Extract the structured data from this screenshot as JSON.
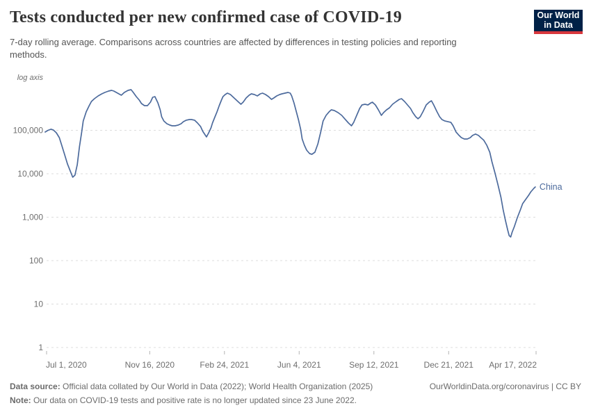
{
  "header": {
    "title": "Tests conducted per new confirmed case of COVID-19",
    "subtitle": "7-day rolling average. Comparisons across countries are affected by differences in testing policies and reporting methods.",
    "logo": {
      "line1": "Our World",
      "line2": "in Data"
    }
  },
  "colors": {
    "line": "#4C6A9C",
    "gridline": "#dcdcdc",
    "tick": "#b3b3b3",
    "axis_text": "#6e6e6e",
    "logo_bg": "#002147",
    "logo_red": "#D8373D"
  },
  "chart_data": {
    "type": "line",
    "title": "Tests conducted per new confirmed case of COVID-19",
    "y_axis": {
      "scale": "log",
      "label": "log axis",
      "grid": "dashed",
      "range": [
        1,
        1000000
      ],
      "ticks": [
        100000,
        10000,
        1000,
        100,
        10,
        1
      ],
      "tick_labels": [
        "100,000",
        "10,000",
        "1,000",
        "100",
        "10",
        "1"
      ]
    },
    "x_axis": {
      "unit": "days since 2020-07-01",
      "range": [
        0,
        655
      ],
      "ticks": [
        [
          0,
          "Jul 1, 2020"
        ],
        [
          138,
          "Nov 16, 2020"
        ],
        [
          238,
          "Feb 24, 2021"
        ],
        [
          338,
          "Jun 4, 2021"
        ],
        [
          438,
          "Sep 12, 2021"
        ],
        [
          538,
          "Dec 21, 2021"
        ],
        [
          655,
          "Apr 17, 2022"
        ]
      ]
    },
    "series": [
      {
        "name": "China",
        "end_label": "China",
        "color": "#4C6A9C",
        "points": [
          [
            -2,
            91200
          ],
          [
            2,
            100000
          ],
          [
            6,
            106000
          ],
          [
            9,
            102000
          ],
          [
            13,
            87900
          ],
          [
            17,
            67900
          ],
          [
            20,
            46900
          ],
          [
            24,
            28100
          ],
          [
            28,
            16700
          ],
          [
            32,
            11200
          ],
          [
            35,
            8320
          ],
          [
            38,
            9290
          ],
          [
            41,
            16100
          ],
          [
            44,
            42000
          ],
          [
            47,
            91200
          ],
          [
            49,
            164000
          ],
          [
            53,
            266000
          ],
          [
            57,
            370000
          ],
          [
            60,
            461000
          ],
          [
            64,
            535000
          ],
          [
            69,
            619000
          ],
          [
            74,
            692000
          ],
          [
            78,
            745000
          ],
          [
            83,
            802000
          ],
          [
            87,
            832000
          ],
          [
            90,
            802000
          ],
          [
            95,
            718000
          ],
          [
            100,
            643000
          ],
          [
            104,
            745000
          ],
          [
            109,
            832000
          ],
          [
            113,
            863000
          ],
          [
            116,
            745000
          ],
          [
            120,
            597000
          ],
          [
            124,
            497000
          ],
          [
            127,
            413000
          ],
          [
            131,
            370000
          ],
          [
            135,
            370000
          ],
          [
            139,
            445000
          ],
          [
            142,
            575000
          ],
          [
            145,
            597000
          ],
          [
            149,
            429000
          ],
          [
            152,
            297000
          ],
          [
            154,
            205000
          ],
          [
            157,
            164000
          ],
          [
            161,
            142000
          ],
          [
            165,
            132000
          ],
          [
            168,
            127000
          ],
          [
            172,
            127000
          ],
          [
            176,
            132000
          ],
          [
            180,
            142000
          ],
          [
            183,
            158000
          ],
          [
            187,
            171000
          ],
          [
            191,
            177000
          ],
          [
            194,
            177000
          ],
          [
            198,
            171000
          ],
          [
            202,
            147000
          ],
          [
            206,
            123000
          ],
          [
            209,
            95000
          ],
          [
            212,
            79000
          ],
          [
            214,
            70500
          ],
          [
            217,
            88000
          ],
          [
            220,
            114000
          ],
          [
            222,
            147000
          ],
          [
            225,
            198000
          ],
          [
            228,
            266000
          ],
          [
            231,
            370000
          ],
          [
            234,
            497000
          ],
          [
            236,
            597000
          ],
          [
            239,
            667000
          ],
          [
            242,
            718000
          ],
          [
            246,
            667000
          ],
          [
            249,
            597000
          ],
          [
            253,
            515000
          ],
          [
            257,
            445000
          ],
          [
            260,
            398000
          ],
          [
            263,
            445000
          ],
          [
            267,
            555000
          ],
          [
            271,
            643000
          ],
          [
            274,
            692000
          ],
          [
            278,
            667000
          ],
          [
            282,
            619000
          ],
          [
            286,
            692000
          ],
          [
            289,
            718000
          ],
          [
            293,
            667000
          ],
          [
            297,
            597000
          ],
          [
            301,
            515000
          ],
          [
            304,
            555000
          ],
          [
            308,
            619000
          ],
          [
            312,
            667000
          ],
          [
            315,
            692000
          ],
          [
            319,
            718000
          ],
          [
            323,
            745000
          ],
          [
            326,
            718000
          ],
          [
            328,
            619000
          ],
          [
            331,
            429000
          ],
          [
            334,
            275000
          ],
          [
            337,
            177000
          ],
          [
            340,
            106000
          ],
          [
            342,
            63000
          ],
          [
            345,
            45300
          ],
          [
            348,
            35000
          ],
          [
            352,
            29100
          ],
          [
            355,
            28100
          ],
          [
            359,
            31300
          ],
          [
            363,
            48800
          ],
          [
            367,
            95000
          ],
          [
            370,
            164000
          ],
          [
            374,
            221000
          ],
          [
            378,
            266000
          ],
          [
            381,
            297000
          ],
          [
            385,
            286000
          ],
          [
            390,
            256000
          ],
          [
            395,
            221000
          ],
          [
            399,
            184000
          ],
          [
            404,
            147000
          ],
          [
            408,
            127000
          ],
          [
            411,
            152000
          ],
          [
            415,
            221000
          ],
          [
            419,
            319000
          ],
          [
            422,
            384000
          ],
          [
            426,
            398000
          ],
          [
            430,
            384000
          ],
          [
            434,
            429000
          ],
          [
            436,
            445000
          ],
          [
            440,
            384000
          ],
          [
            444,
            297000
          ],
          [
            448,
            221000
          ],
          [
            451,
            256000
          ],
          [
            455,
            297000
          ],
          [
            459,
            331000
          ],
          [
            463,
            398000
          ],
          [
            468,
            461000
          ],
          [
            472,
            515000
          ],
          [
            475,
            535000
          ],
          [
            479,
            461000
          ],
          [
            483,
            384000
          ],
          [
            487,
            319000
          ],
          [
            490,
            256000
          ],
          [
            494,
            205000
          ],
          [
            497,
            184000
          ],
          [
            500,
            205000
          ],
          [
            504,
            275000
          ],
          [
            508,
            384000
          ],
          [
            512,
            445000
          ],
          [
            515,
            479000
          ],
          [
            518,
            384000
          ],
          [
            522,
            275000
          ],
          [
            526,
            205000
          ],
          [
            529,
            177000
          ],
          [
            533,
            164000
          ],
          [
            537,
            158000
          ],
          [
            541,
            152000
          ],
          [
            544,
            127000
          ],
          [
            548,
            91000
          ],
          [
            552,
            76000
          ],
          [
            555,
            68000
          ],
          [
            559,
            63000
          ],
          [
            563,
            63000
          ],
          [
            567,
            68000
          ],
          [
            570,
            76000
          ],
          [
            574,
            82000
          ],
          [
            578,
            76000
          ],
          [
            581,
            68000
          ],
          [
            585,
            59000
          ],
          [
            589,
            45300
          ],
          [
            593,
            31300
          ],
          [
            596,
            18700
          ],
          [
            600,
            10400
          ],
          [
            604,
            5560
          ],
          [
            608,
            2860
          ],
          [
            611,
            1470
          ],
          [
            614,
            850
          ],
          [
            617,
            505
          ],
          [
            619,
            377
          ],
          [
            621,
            350
          ],
          [
            623,
            453
          ],
          [
            626,
            610
          ],
          [
            630,
            980
          ],
          [
            634,
            1470
          ],
          [
            637,
            2050
          ],
          [
            641,
            2560
          ],
          [
            645,
            3190
          ],
          [
            648,
            3840
          ],
          [
            652,
            4610
          ],
          [
            654,
            4970
          ]
        ]
      }
    ]
  },
  "footer": {
    "source_label": "Data source:",
    "source_text": " Official data collated by Our World in Data (2022); World Health Organization (2025)",
    "link_text": "OurWorldinData.org/coronavirus | CC BY",
    "note_label": "Note:",
    "note_text": " Our data on COVID-19 tests and positive rate is no longer updated since 23 June 2022."
  }
}
